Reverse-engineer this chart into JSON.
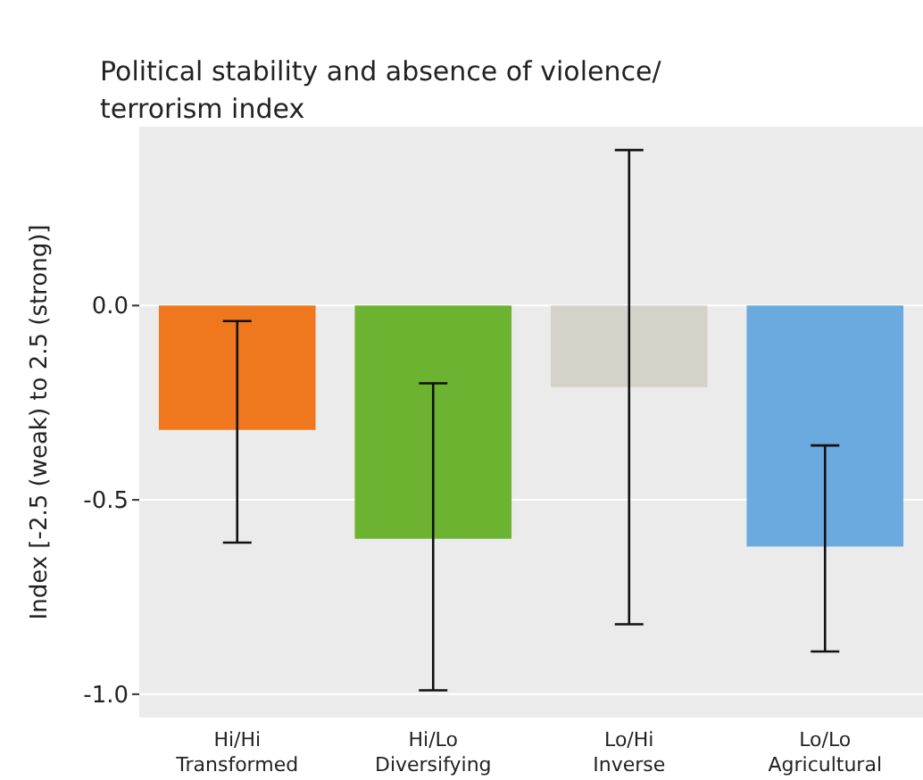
{
  "chart_data": {
    "type": "bar",
    "title": "Political stability and absence of violence/\nterrorism index",
    "ylabel": "Index [-2.5 (weak) to 2.5 (strong)]",
    "categories": [
      "Hi/Hi\nTransformed",
      "Hi/Lo\nDiversifying",
      "Lo/Hi\nInverse",
      "Lo/Lo\nAgricultural"
    ],
    "values": [
      -0.32,
      -0.6,
      -0.21,
      -0.62
    ],
    "colors": [
      "#ef781e",
      "#6db332",
      "#d5d2ca",
      "#6aaade"
    ],
    "errors": [
      [
        -0.61,
        -0.04
      ],
      [
        -0.99,
        -0.2
      ],
      [
        -0.82,
        0.4
      ],
      [
        -0.89,
        -0.36
      ]
    ],
    "ylim": [
      -1.06,
      0.46
    ],
    "yticks": [
      {
        "value": -1,
        "label": "-1.0"
      },
      {
        "value": -0.5,
        "label": "-0.5"
      },
      {
        "value": 0,
        "label": "0.0"
      }
    ],
    "grid": "y"
  }
}
